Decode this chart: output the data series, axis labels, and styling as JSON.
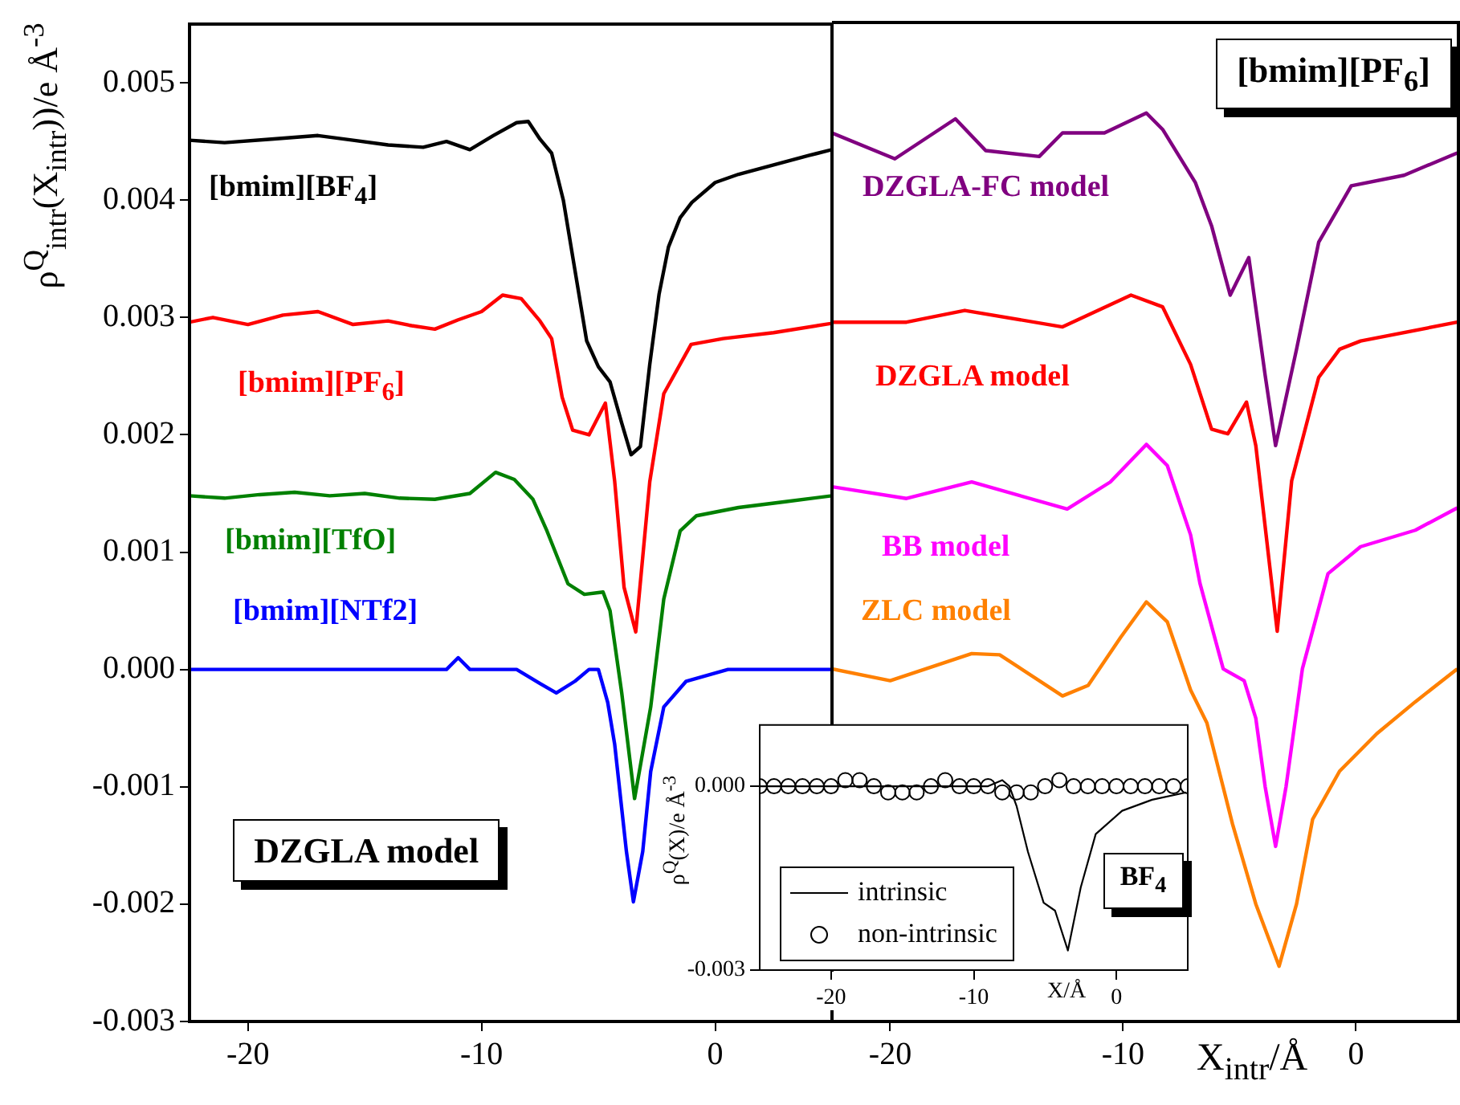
{
  "chart_data": [
    {
      "type": "line",
      "title": "DZGLA model",
      "ylabel": "ρ$^{Q}$$_{intr}$(X$_{intr}$))/e Å$^{-3}$",
      "marker": "none",
      "xlim": [
        -22.5,
        5
      ],
      "ylim": [
        -0.003,
        0.0055
      ],
      "xticks": [
        -20,
        -10,
        0
      ],
      "yticks": [
        -0.003,
        -0.002,
        -0.001,
        {
          "value": 0,
          "label": "0.000"
        },
        0.001,
        0.002,
        0.003,
        0.004,
        0.005
      ],
      "series": [
        {
          "name": "[bmim][BF$_{4}$]",
          "color": "#000000",
          "x": [
            -22.5,
            -21,
            -19,
            -17,
            -15.5,
            -14,
            -12.5,
            -11.5,
            -10.5,
            -9.5,
            -8.5,
            -8,
            -7.5,
            -7,
            -6.5,
            -6,
            -5.5,
            -5,
            -4.5,
            -4,
            -3.6,
            -3.2,
            -2.8,
            -2.4,
            -2,
            -1.5,
            -1,
            0,
            1,
            2.5,
            4,
            5
          ],
          "values": [
            0.00451,
            0.00449,
            0.00452,
            0.00455,
            0.00451,
            0.00447,
            0.00445,
            0.0045,
            0.00443,
            0.00455,
            0.00466,
            0.00467,
            0.00452,
            0.0044,
            0.004,
            0.0034,
            0.0028,
            0.00258,
            0.00245,
            0.0021,
            0.00183,
            0.0019,
            0.0026,
            0.0032,
            0.0036,
            0.00385,
            0.00398,
            0.00415,
            0.00422,
            0.0043,
            0.00438,
            0.00443
          ]
        },
        {
          "name": "[bmim][PF$_{6}$]",
          "color": "#ff0000",
          "x": [
            -22.5,
            -21.5,
            -20,
            -18.5,
            -17,
            -15.5,
            -14,
            -13,
            -12,
            -11,
            -10,
            -9.1,
            -8.3,
            -7.5,
            -7,
            -6.55,
            -6.1,
            -5.4,
            -4.7,
            -4.3,
            -3.9,
            -3.4,
            -2.8,
            -2.2,
            -1.03,
            0.34,
            2.5,
            5
          ],
          "values": [
            0.00296,
            0.003,
            0.00294,
            0.00302,
            0.00305,
            0.00294,
            0.00297,
            0.00293,
            0.0029,
            0.00298,
            0.00305,
            0.00319,
            0.00316,
            0.00297,
            0.00282,
            0.00232,
            0.00204,
            0.002,
            0.00227,
            0.0016,
            0.0007,
            0.00032,
            0.0016,
            0.00235,
            0.00277,
            0.00282,
            0.00287,
            0.00295
          ]
        },
        {
          "name": "[bmim][TfO]",
          "color": "#008000",
          "x": [
            -22.5,
            -21,
            -19.5,
            -18,
            -16.5,
            -15,
            -13.5,
            -12,
            -10.5,
            -9.4,
            -8.6,
            -7.8,
            -7.2,
            -6.3,
            -5.6,
            -4.8,
            -4.5,
            -4,
            -3.45,
            -2.76,
            -2.2,
            -1.5,
            -0.8,
            1,
            3,
            5
          ],
          "values": [
            0.00148,
            0.00146,
            0.00149,
            0.00151,
            0.00148,
            0.0015,
            0.00146,
            0.00145,
            0.0015,
            0.00168,
            0.00162,
            0.00145,
            0.00118,
            0.00073,
            0.00064,
            0.00066,
            0.0005,
            -0.0002,
            -0.0011,
            -0.00032,
            0.0006,
            0.00118,
            0.00131,
            0.00138,
            0.00143,
            0.00148
          ]
        },
        {
          "name": "[bmim][NTf2]",
          "color": "#0000ff",
          "x": [
            -22.5,
            -21.5,
            -20.5,
            -19.5,
            -18.5,
            -17.5,
            -16.5,
            -15.5,
            -14.5,
            -13.5,
            -12.5,
            -11.5,
            -11,
            -10.5,
            -9.5,
            -8.5,
            -7.5,
            -6.8,
            -6,
            -5.4,
            -5,
            -4.6,
            -4.3,
            -3.8,
            -3.5,
            -3.1,
            -2.76,
            -2.2,
            -1.24,
            0.55,
            2.5,
            5
          ],
          "values": [
            0,
            0,
            0,
            0,
            0,
            0,
            0,
            0,
            0,
            0,
            0,
            0,
            0.0001,
            0,
            0,
            0,
            -0.00012,
            -0.0002,
            -0.0001,
            0,
            0,
            -0.00028,
            -0.00064,
            -0.00155,
            -0.00198,
            -0.00155,
            -0.00087,
            -0.00032,
            -0.0001,
            0,
            0,
            0
          ]
        }
      ]
    },
    {
      "type": "line",
      "title": "[bmim][PF$_{6}$]",
      "xlabel": "X$_{intr}$/Å",
      "marker": "none",
      "tick_labels": "x",
      "xlim": [
        -22.5,
        4.4
      ],
      "ylim": [
        -0.003,
        0.0055
      ],
      "xticks": [
        -20,
        -10,
        0
      ],
      "series": [
        {
          "name": "DZGLA-FC model",
          "color": "#800080",
          "x": [
            -22.5,
            -19.8,
            -17.2,
            -15.9,
            -13.6,
            -12.6,
            -10.8,
            -9,
            -8.3,
            -6.9,
            -6.2,
            -5.4,
            -4.6,
            -3.9,
            -3.45,
            -2.55,
            -1.6,
            -0.2,
            2.07,
            4.35
          ],
          "values": [
            0.00456,
            0.00434,
            0.00468,
            0.00441,
            0.00436,
            0.00456,
            0.00456,
            0.00473,
            0.00459,
            0.00414,
            0.00377,
            0.00318,
            0.0035,
            0.0025,
            0.0019,
            0.00272,
            0.00363,
            0.00411,
            0.0042,
            0.00439
          ]
        },
        {
          "name": "DZGLA model",
          "color": "#ff0000",
          "x": [
            -22.5,
            -19.3,
            -16.8,
            -12.6,
            -9.66,
            -8.3,
            -7.1,
            -6.2,
            -5.5,
            -4.7,
            -4.3,
            -3.38,
            -2.76,
            -1.6,
            -0.7,
            0.2,
            4.35
          ],
          "values": [
            0.00295,
            0.00295,
            0.00305,
            0.00291,
            0.00318,
            0.00308,
            0.00259,
            0.00204,
            0.002,
            0.00227,
            0.0019,
            0.00032,
            0.0016,
            0.00248,
            0.00272,
            0.00279,
            0.00295
          ]
        },
        {
          "name": "BB model",
          "color": "#ff00ff",
          "x": [
            -22.5,
            -19.3,
            -16.5,
            -12.4,
            -10.55,
            -9,
            -8.1,
            -7.1,
            -6.7,
            -5.7,
            -4.8,
            -4.3,
            -3.9,
            -3.45,
            -3,
            -2.3,
            -1.2,
            0.2,
            2.55,
            4.35
          ],
          "values": [
            0.00155,
            0.00145,
            0.00159,
            0.00136,
            0.00159,
            0.00191,
            0.00173,
            0.00114,
            0.00073,
            0,
            -0.0001,
            -0.00042,
            -0.001,
            -0.00151,
            -0.001,
            0,
            0.00081,
            0.00104,
            0.00118,
            0.00137
          ]
        },
        {
          "name": "ZLC model",
          "color": "#ff8000",
          "x": [
            -22.5,
            -20,
            -16.5,
            -15.3,
            -12.6,
            -11.5,
            -10.1,
            -9,
            -8.1,
            -7.1,
            -6.4,
            -5.3,
            -4.3,
            -3.3,
            -2.55,
            -1.86,
            -0.7,
            0.9,
            2.55,
            4.35
          ],
          "values": [
            0,
            -0.0001,
            0.00013,
            0.00012,
            -0.00023,
            -0.00014,
            0.00027,
            0.00057,
            0.0004,
            -0.00018,
            -0.00046,
            -0.00132,
            -0.002,
            -0.00253,
            -0.002,
            -0.00128,
            -0.00087,
            -0.00055,
            -0.00028,
            0
          ]
        }
      ]
    },
    {
      "type": "line",
      "title": "BF$_{4}$",
      "xlabel": "X/Å",
      "ylabel": "ρ$^{Q}$(X)/e Å$^{-3}$",
      "legend": "bottom left",
      "xlim": [
        -25,
        5
      ],
      "ylim": [
        -0.003,
        0.001
      ],
      "xticks": [
        -20,
        -10,
        0
      ],
      "yticks": [
        -0.003,
        {
          "value": 0,
          "label": "0.000"
        }
      ],
      "series": [
        {
          "name": "intrinsic",
          "color": "#000000",
          "marker": "none",
          "x": [
            -25,
            -23,
            -21,
            -19,
            -17,
            -15.5,
            -14,
            -12,
            -10,
            -9,
            -8,
            -7.5,
            -7,
            -6.2,
            -5.1,
            -4.3,
            -3.4,
            -2.5,
            -1.45,
            0.4,
            2.5,
            4.9
          ],
          "values": [
            0,
            0,
            0,
            0,
            0,
            0,
            0,
            0,
            0,
            0,
            0.0001,
            0,
            -0.00032,
            -0.00107,
            -0.0019,
            -0.00203,
            -0.00268,
            -0.00165,
            -0.00078,
            -0.0004,
            -0.00022,
            -0.0001
          ]
        },
        {
          "name": "non-intrinsic",
          "type": "scatter",
          "marker": "circle",
          "color": "#000000",
          "x": [
            -25,
            -24,
            -23,
            -22,
            -21,
            -20,
            -19,
            -18,
            -17,
            -16,
            -15,
            -14,
            -13,
            -12,
            -11,
            -10,
            -9,
            -8,
            -7,
            -6,
            -5,
            -4,
            -3,
            -2,
            -1,
            0,
            1,
            2,
            3,
            4,
            5
          ],
          "values": [
            0,
            0,
            0,
            0,
            0,
            0,
            0.0001,
            0.0001,
            0,
            -0.0001,
            -0.0001,
            -0.0001,
            0,
            0.0001,
            0,
            0,
            0,
            -0.0001,
            -0.0001,
            -0.0001,
            0,
            0.0001,
            0,
            0,
            0,
            0,
            0,
            0,
            0,
            0,
            0
          ]
        }
      ]
    }
  ]
}
